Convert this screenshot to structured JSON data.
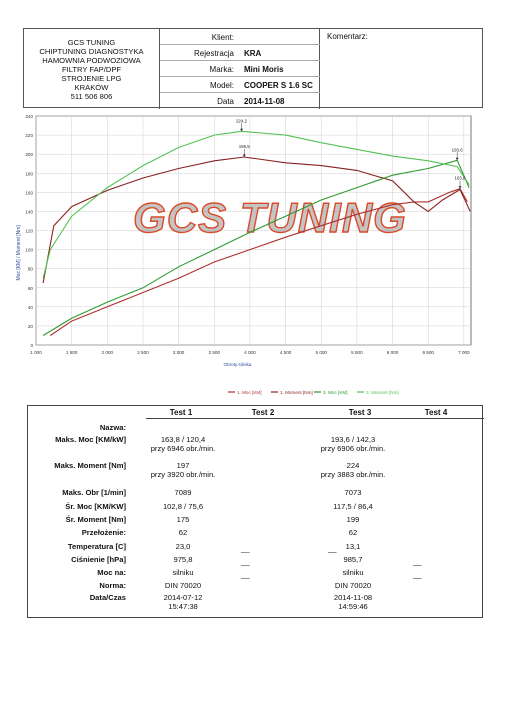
{
  "company": {
    "lines": [
      "GCS TUNING",
      "CHIPTUNING DIAGNOSTYKA",
      "HAMOWNIA PODWOZIOWA",
      "FILTRY FAP/DPF",
      "STROJENIE LPG",
      "KRAKÓW",
      "511 506 806"
    ]
  },
  "client": {
    "rows": [
      {
        "label": "Klient:",
        "value": ""
      },
      {
        "label": "Rejestracja",
        "value": "KRA"
      },
      {
        "label": "Marka:",
        "value": "Mini Moris"
      },
      {
        "label": "Model:",
        "value": "COOPER S 1.6 SC"
      },
      {
        "label": "Data",
        "value": "2014-11-08"
      }
    ]
  },
  "komentarz_label": "Komentarz:",
  "chart_data": {
    "type": "line",
    "watermark": "GCS TUNING",
    "xlabel": "Obroty silnika",
    "ylabel": "Moc [KM] / Moment [Nm]",
    "xlim": [
      1000,
      7100
    ],
    "ylim": [
      0,
      240
    ],
    "x_ticks": [
      "1 000",
      "1 500",
      "2 000",
      "2 500",
      "3 000",
      "3 500",
      "4 000",
      "4 500",
      "5 000",
      "5 500",
      "6 000",
      "6 500",
      "7 000"
    ],
    "y_ticks": [
      "0",
      "20",
      "40",
      "60",
      "80",
      "100",
      "120",
      "140",
      "160",
      "180",
      "200",
      "220",
      "240"
    ],
    "grid": true,
    "legend_position": "bottom",
    "series": [
      {
        "name": "1. Moc [KM]",
        "color": "#b03030",
        "points": [
          [
            1200,
            10
          ],
          [
            1500,
            25
          ],
          [
            2000,
            40
          ],
          [
            2500,
            55
          ],
          [
            3000,
            70
          ],
          [
            3500,
            87
          ],
          [
            4000,
            100
          ],
          [
            4500,
            113
          ],
          [
            5000,
            125
          ],
          [
            5500,
            137
          ],
          [
            6000,
            147
          ],
          [
            6300,
            150
          ],
          [
            6500,
            150
          ],
          [
            6800,
            160
          ],
          [
            6946,
            163.8
          ],
          [
            7050,
            150
          ]
        ]
      },
      {
        "name": "1. Moment [Nm]",
        "color": "#8b2020",
        "points": [
          [
            1100,
            65
          ],
          [
            1250,
            125
          ],
          [
            1500,
            145
          ],
          [
            2000,
            162
          ],
          [
            2500,
            175
          ],
          [
            3000,
            185
          ],
          [
            3500,
            193
          ],
          [
            3920,
            197
          ],
          [
            4500,
            191
          ],
          [
            5000,
            188
          ],
          [
            5500,
            183
          ],
          [
            6000,
            172
          ],
          [
            6300,
            150
          ],
          [
            6500,
            140
          ],
          [
            6700,
            152
          ],
          [
            6946,
            163
          ],
          [
            7089,
            140
          ]
        ]
      },
      {
        "name": "3. Moc [KM]",
        "color": "#2f9a2f",
        "points": [
          [
            1100,
            10
          ],
          [
            1500,
            28
          ],
          [
            2000,
            45
          ],
          [
            2500,
            60
          ],
          [
            3000,
            82
          ],
          [
            3500,
            100
          ],
          [
            4000,
            118
          ],
          [
            4500,
            135
          ],
          [
            5000,
            152
          ],
          [
            5500,
            165
          ],
          [
            6000,
            178
          ],
          [
            6500,
            185
          ],
          [
            6906,
            193.6
          ],
          [
            7073,
            165
          ]
        ]
      },
      {
        "name": "3. Moment [Nm]",
        "color": "#55c055",
        "points": [
          [
            1100,
            70
          ],
          [
            1200,
            100
          ],
          [
            1500,
            135
          ],
          [
            2000,
            165
          ],
          [
            2500,
            188
          ],
          [
            3000,
            207
          ],
          [
            3500,
            220
          ],
          [
            3883,
            224
          ],
          [
            4500,
            220
          ],
          [
            5000,
            212
          ],
          [
            5500,
            205
          ],
          [
            6000,
            198
          ],
          [
            6500,
            193
          ],
          [
            6906,
            187
          ],
          [
            7073,
            168
          ]
        ]
      }
    ],
    "annotations": [
      {
        "label": "224,2",
        "x": 3883,
        "y": 224
      },
      {
        "label": "196,5",
        "x": 3920,
        "y": 197
      },
      {
        "label": "193,6",
        "x": 6906,
        "y": 193.6
      },
      {
        "label": "163,8",
        "x": 6946,
        "y": 163.8
      }
    ]
  },
  "results": {
    "headers": [
      "Test 1",
      "Test 2",
      "Test 3",
      "Test 4"
    ],
    "rows": [
      {
        "label": "Nazwa:",
        "t1": "",
        "t3": ""
      },
      {
        "label": "Maks. Moc [KM/kW]",
        "t1": "163,8 / 120,4",
        "t1b": "przy 6946 obr./min.",
        "t3": "193,6 / 142,3",
        "t3b": "przy 6906 obr./min."
      },
      {
        "label": "Maks. Moment [Nm]",
        "t1": "197",
        "t1b": "przy 3920 obr./min.",
        "t3": "224",
        "t3b": "przy 3883 obr./min."
      },
      {
        "label": "Maks. Obr [1/min]",
        "t1": "7089",
        "t3": "7073"
      },
      {
        "label": "Śr. Moc [KM/KW]",
        "t1": "102,8 / 75,6",
        "t3": "117,5 / 86,4"
      },
      {
        "label": "Śr. Moment [Nm]",
        "t1": "175",
        "t3": "199"
      },
      {
        "label": "Przełożenie:",
        "t1": "62",
        "t3": "62"
      },
      {
        "label": "Temperatura [C]",
        "t1": "23,0",
        "t3": "13,1"
      },
      {
        "label": "Ciśnienie [hPa]",
        "t1": "975,8",
        "t3": "985,7"
      },
      {
        "label": "Moc na:",
        "t1": "silniku",
        "t3": "silniku"
      },
      {
        "label": "Norma:",
        "t1": "DIN 70020",
        "t3": "DIN 70020"
      },
      {
        "label": "Data/Czas",
        "t1": "2014-07-12",
        "t1b": "15:47:38",
        "t3": "2014-11-08",
        "t3b": "14:59:46"
      }
    ]
  }
}
